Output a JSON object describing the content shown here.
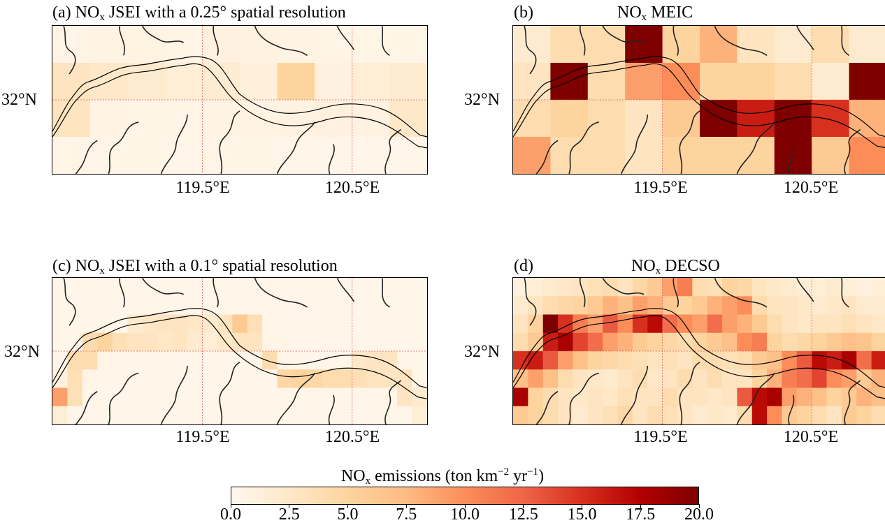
{
  "colorbar": {
    "title_base": "NO",
    "title_sub": "x",
    "title_mid": " emissions (ton km",
    "title_sup1": "−2",
    "title_mid2": " yr",
    "title_sup2": "−1",
    "title_end": ")",
    "min": 0.0,
    "max": 20.0,
    "ticks": [
      "0.0",
      "2.5",
      "5.0",
      "7.5",
      "10.0",
      "12.5",
      "15.0",
      "17.5",
      "20.0"
    ],
    "colors": [
      "#fff7ec",
      "#fee8c8",
      "#fdd49e",
      "#fdbb84",
      "#fc8d59",
      "#ef6548",
      "#d7301f",
      "#b30000",
      "#7f0000"
    ]
  },
  "panels": [
    {
      "id": "a",
      "title_prefix": "(a) NO",
      "title_sub": "x",
      "title_suffix": "   JSEI with a 0.25° spatial resolution",
      "y_label": "32°N",
      "x_labels": [
        "119.5°E",
        "120.5°E"
      ],
      "grid": {
        "rows": 4,
        "cols": 10,
        "values": [
          [
            0.5,
            0.6,
            0.7,
            0.5,
            1.0,
            0.8,
            0.6,
            0.5,
            0.4,
            0.4
          ],
          [
            3.0,
            2.5,
            2.0,
            1.5,
            1.8,
            1.2,
            5.0,
            1.0,
            1.5,
            2.0
          ],
          [
            3.0,
            0.6,
            0.5,
            0.5,
            0.6,
            0.6,
            0.8,
            1.0,
            0.8,
            2.5
          ],
          [
            0.5,
            0.4,
            0.4,
            0.3,
            0.5,
            0.4,
            0.3,
            0.3,
            0.3,
            0.3
          ]
        ]
      }
    },
    {
      "id": "b",
      "title_prefix": "(b)",
      "title_mid": "NO",
      "title_sub": "x",
      "title_suffix": "  MEIC",
      "y_label": "32°N",
      "x_labels": [
        "119.5°E",
        "120.5°E"
      ],
      "grid": {
        "rows": 4,
        "cols": 10,
        "values": [
          [
            2.0,
            4.0,
            4.0,
            20.0,
            5.0,
            8.0,
            3.0,
            2.0,
            4.0,
            2.0
          ],
          [
            3.0,
            20.0,
            4.0,
            9.0,
            10.0,
            5.0,
            5.0,
            4.0,
            2.0,
            20.0
          ],
          [
            4.0,
            5.0,
            4.0,
            3.0,
            6.0,
            20.0,
            16.0,
            20.0,
            15.0,
            8.0
          ],
          [
            9.0,
            4.0,
            4.0,
            3.0,
            5.0,
            5.0,
            5.0,
            20.0,
            6.0,
            10.0
          ]
        ]
      }
    },
    {
      "id": "c",
      "title_prefix": "(c)  NO",
      "title_sub": "x",
      "title_suffix": " JSEI with a 0.1° spatial resolution",
      "y_label": "32°N",
      "x_labels": [
        "119.5°E",
        "120.5°E"
      ],
      "grid": {
        "rows": 8,
        "cols": 25,
        "values": [
          [
            0.3,
            0.3,
            0.3,
            0.3,
            0.3,
            0.3,
            0.3,
            0.3,
            0.3,
            0.3,
            0.3,
            0.3,
            0.5,
            0.3,
            0.3,
            0.3,
            0.3,
            0.3,
            0.3,
            0.3,
            0.3,
            0.3,
            0.3,
            0.3,
            0.3
          ],
          [
            0.3,
            0.3,
            0.3,
            0.3,
            0.3,
            0.3,
            0.3,
            0.3,
            0.3,
            0.3,
            0.3,
            0.3,
            0.3,
            0.3,
            0.3,
            0.3,
            0.3,
            0.3,
            0.3,
            0.3,
            0.3,
            0.3,
            0.3,
            0.3,
            0.3
          ],
          [
            0.3,
            0.3,
            0.3,
            0.3,
            0.3,
            2.0,
            2.5,
            3.0,
            3.0,
            2.5,
            2.0,
            3.0,
            6.0,
            3.5,
            0.3,
            0.3,
            0.3,
            0.3,
            0.3,
            0.3,
            0.3,
            0.3,
            0.3,
            0.3,
            0.3
          ],
          [
            0.3,
            0.3,
            4.0,
            5.0,
            3.5,
            3.0,
            3.0,
            2.5,
            3.0,
            2.0,
            1.5,
            2.5,
            3.0,
            3.0,
            0.5,
            0.5,
            0.3,
            0.3,
            0.3,
            0.3,
            0.3,
            0.3,
            0.3,
            0.3,
            0.3
          ],
          [
            0.3,
            4.0,
            4.0,
            0.5,
            0.3,
            0.3,
            0.3,
            0.3,
            0.3,
            0.3,
            0.3,
            0.3,
            0.3,
            0.3,
            4.0,
            0.3,
            0.3,
            0.3,
            0.3,
            0.3,
            2.5,
            3.0,
            3.0,
            0.5,
            0.3
          ],
          [
            1.0,
            3.5,
            0.5,
            0.3,
            0.3,
            0.3,
            0.3,
            0.3,
            0.3,
            0.3,
            0.3,
            0.3,
            0.3,
            0.3,
            0.3,
            4.5,
            5.0,
            4.5,
            4.0,
            4.0,
            3.5,
            3.0,
            3.0,
            3.0,
            0.3
          ],
          [
            9.0,
            3.5,
            0.3,
            0.3,
            0.3,
            0.3,
            0.3,
            0.3,
            0.3,
            0.3,
            0.3,
            0.3,
            0.3,
            0.3,
            0.3,
            0.3,
            0.3,
            0.3,
            0.3,
            0.3,
            0.3,
            0.3,
            0.3,
            3.0,
            2.0
          ],
          [
            1.5,
            0.3,
            0.3,
            0.3,
            0.3,
            0.3,
            0.3,
            0.3,
            0.3,
            0.3,
            0.3,
            0.3,
            0.3,
            0.3,
            0.3,
            0.3,
            0.3,
            0.3,
            0.3,
            0.3,
            0.3,
            0.3,
            0.3,
            0.3,
            1.5
          ]
        ]
      }
    },
    {
      "id": "d",
      "title_prefix": "(d)",
      "title_mid": "NO",
      "title_sub": "x",
      "title_suffix": "   DECSO",
      "y_label": "32°N",
      "x_labels": [
        "119.5°E",
        "120.5°E"
      ],
      "grid": {
        "rows": 8,
        "cols": 25,
        "values": [
          [
            1.0,
            1.5,
            2.0,
            2.5,
            3.0,
            3.5,
            4.0,
            3.0,
            4.5,
            6.0,
            9.0,
            11.0,
            4.0,
            3.5,
            5.0,
            4.5,
            3.0,
            2.5,
            2.0,
            1.5,
            1.5,
            2.0,
            1.5,
            1.0,
            1.5
          ],
          [
            2.0,
            3.0,
            4.0,
            4.5,
            5.0,
            6.0,
            8.0,
            7.0,
            9.0,
            8.0,
            6.0,
            5.0,
            6.0,
            8.0,
            9.0,
            10.0,
            4.0,
            3.0,
            3.0,
            2.5,
            2.0,
            2.5,
            3.0,
            2.0,
            2.0
          ],
          [
            3.0,
            5.0,
            20.0,
            15.0,
            11.0,
            9.0,
            13.0,
            10.0,
            15.0,
            17.0,
            12.0,
            10.0,
            9.0,
            12.0,
            9.0,
            8.0,
            6.0,
            4.0,
            3.0,
            2.5,
            3.0,
            3.0,
            3.5,
            3.0,
            2.5
          ],
          [
            4.0,
            6.0,
            16.0,
            18.0,
            14.0,
            12.0,
            9.0,
            8.0,
            6.0,
            5.0,
            4.5,
            4.0,
            5.0,
            6.0,
            7.0,
            10.0,
            11.0,
            5.0,
            4.0,
            4.5,
            5.0,
            6.0,
            7.0,
            6.5,
            5.0
          ],
          [
            15.0,
            16.0,
            13.0,
            9.0,
            7.0,
            5.0,
            4.5,
            4.0,
            3.5,
            3.0,
            3.5,
            3.0,
            4.0,
            4.0,
            3.5,
            4.0,
            6.0,
            7.0,
            10.0,
            13.0,
            17.0,
            16.0,
            18.0,
            12.0,
            16.0
          ],
          [
            7.0,
            9.0,
            7.0,
            4.0,
            3.0,
            2.5,
            2.0,
            3.0,
            4.0,
            2.5,
            3.0,
            4.0,
            3.0,
            4.0,
            3.0,
            3.0,
            5.0,
            8.0,
            11.0,
            12.0,
            14.0,
            10.0,
            9.0,
            6.0,
            8.0
          ],
          [
            18.0,
            5.0,
            4.0,
            3.0,
            2.5,
            3.0,
            2.5,
            3.5,
            3.0,
            3.0,
            4.0,
            3.0,
            3.0,
            2.5,
            3.0,
            13.0,
            17.0,
            18.0,
            9.0,
            8.0,
            7.0,
            5.0,
            6.0,
            8.0,
            7.0
          ],
          [
            6.0,
            5.0,
            4.0,
            3.0,
            2.0,
            3.0,
            3.5,
            4.5,
            3.0,
            4.0,
            3.5,
            3.0,
            2.0,
            2.5,
            2.0,
            4.0,
            17.0,
            10.0,
            6.0,
            5.0,
            4.0,
            3.0,
            6.0,
            5.0,
            4.0
          ]
        ]
      }
    }
  ]
}
